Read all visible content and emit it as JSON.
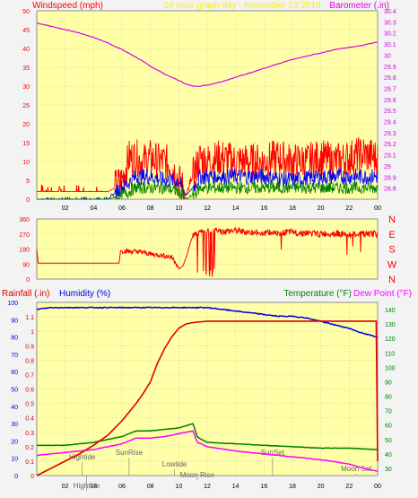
{
  "header": {
    "left_label": "Windspeed (mph)",
    "center_label": "24 hour graph day - November 13 2018",
    "right_label": "Barometer (.in)"
  },
  "legend_lower": {
    "rainfall": "Rainfall (.in)",
    "humidity": "Humidity (%)",
    "temperature": "Temperature (°F)",
    "dewpoint": "Dew Point (°F)"
  },
  "colors": {
    "panel_bg": "#ffffa8",
    "frame_bg": "#f3f3f3",
    "wind_speed": "#ff0000",
    "wind_avg": "#0000ff",
    "wind_low": "#008000",
    "barometer": "#e000e0",
    "wind_dir": "#ff0000",
    "rainfall": "#e00000",
    "humidity": "#0000e0",
    "temperature": "#008000",
    "dewpoint": "#ff00ff",
    "header_text": "#ffee00",
    "grid": "#b0b0b0"
  },
  "chart_data": [
    {
      "type": "line",
      "name": "wind-and-barometer",
      "x_ticks": [
        "02",
        "04",
        "06",
        "08",
        "10",
        "12",
        "14",
        "16",
        "18",
        "20",
        "22",
        "00"
      ],
      "x_range": [
        0,
        24
      ],
      "ylabel_left": "Windspeed (mph)",
      "ylabel_right": "Barometer (.in)",
      "ylim_left": [
        0,
        50
      ],
      "ylim_right": [
        28.7,
        30.4
      ],
      "y_ticks_left": [
        "0",
        "5",
        "10",
        "15",
        "20",
        "25",
        "30",
        "35",
        "40",
        "45",
        "50"
      ],
      "y_ticks_right": [
        "28.8",
        "28.9",
        "29",
        "29.1",
        "29.2",
        "29.3",
        "29.4",
        "29.5",
        "29.6",
        "29.7",
        "29.8",
        "29.9",
        "30",
        "30.1",
        "30.2",
        "30.3",
        "30.4"
      ],
      "grid": true,
      "series": [
        {
          "name": "Barometer",
          "axis": "right",
          "x": [
            0,
            1,
            2,
            3,
            4,
            5,
            6,
            7,
            8,
            9,
            10,
            10.5,
            11,
            11.5,
            12,
            13,
            14,
            15,
            16,
            17,
            18,
            19,
            20,
            21,
            22,
            23,
            24
          ],
          "y": [
            30.29,
            30.26,
            30.23,
            30.2,
            30.16,
            30.11,
            30.05,
            29.98,
            29.9,
            29.83,
            29.77,
            29.74,
            29.72,
            29.72,
            29.73,
            29.76,
            29.8,
            29.84,
            29.88,
            29.92,
            29.96,
            29.99,
            30.02,
            30.05,
            30.07,
            30.09,
            30.12
          ]
        },
        {
          "name": "Wind gust",
          "axis": "left",
          "x": [
            0,
            1,
            2,
            3,
            4,
            5,
            5.5,
            6,
            6.5,
            7,
            7.5,
            8,
            8.5,
            9,
            9.5,
            10,
            10.5,
            11,
            11.5,
            12,
            13,
            14,
            15,
            16,
            17,
            18,
            19,
            20,
            21,
            22,
            23,
            24
          ],
          "y": [
            2,
            2,
            2,
            2,
            2,
            2,
            3,
            5,
            11,
            11,
            10,
            11,
            10,
            10,
            9,
            5,
            1,
            6,
            11,
            10,
            11,
            10,
            10,
            10,
            11,
            10,
            10,
            11,
            10,
            11,
            12,
            11
          ]
        },
        {
          "name": "Wind average",
          "axis": "left",
          "x": [
            0,
            5,
            6,
            7,
            8,
            9,
            10,
            10.5,
            11,
            11.5,
            12,
            14,
            16,
            18,
            20,
            22,
            24
          ],
          "y": [
            0,
            0,
            3,
            6,
            6,
            5,
            5,
            1,
            3,
            6,
            6,
            6,
            6,
            5,
            6,
            6,
            6
          ]
        },
        {
          "name": "Wind low",
          "axis": "left",
          "x": [
            0,
            5,
            6,
            7,
            8,
            9,
            10,
            10.5,
            11,
            11.5,
            12,
            14,
            16,
            18,
            20,
            22,
            24
          ],
          "y": [
            0,
            0,
            1,
            3,
            3,
            3,
            2,
            0,
            1,
            3,
            3,
            3,
            3,
            3,
            3,
            3,
            3
          ]
        }
      ]
    },
    {
      "type": "line",
      "name": "wind-direction",
      "x_range": [
        0,
        24
      ],
      "ylim": [
        0,
        360
      ],
      "y_ticks_left": [
        "0",
        "90",
        "180",
        "270",
        "360"
      ],
      "y_ticks_right": [
        "N",
        "W",
        "S",
        "E",
        "N"
      ],
      "grid": true,
      "series": [
        {
          "name": "Wind direction",
          "x": [
            0,
            0.1,
            5.8,
            5.9,
            6.5,
            7,
            7.5,
            8,
            8.5,
            9,
            9.5,
            9.8,
            10,
            10.3,
            10.6,
            10.8,
            11,
            11.2,
            11.6,
            12,
            13,
            14,
            15,
            16,
            17,
            18,
            19,
            20,
            21,
            22,
            23,
            24
          ],
          "y": [
            180,
            95,
            95,
            170,
            165,
            165,
            160,
            150,
            145,
            140,
            130,
            100,
            60,
            80,
            150,
            215,
            260,
            270,
            280,
            290,
            285,
            290,
            280,
            275,
            280,
            280,
            275,
            270,
            275,
            265,
            270,
            270
          ]
        }
      ]
    },
    {
      "type": "line",
      "name": "rain-humidity-temperature",
      "x_ticks": [
        "02",
        "04",
        "06",
        "08",
        "10",
        "12",
        "14",
        "16",
        "18",
        "20",
        "22",
        "00"
      ],
      "x_range": [
        0,
        24
      ],
      "ylim_humidity": [
        0,
        100
      ],
      "ylim_rain": [
        0,
        1.2
      ],
      "ylim_temp": [
        25,
        145
      ],
      "y_ticks_humidity": [
        "0",
        "10",
        "20",
        "30",
        "40",
        "50",
        "60",
        "70",
        "80",
        "90",
        "100"
      ],
      "y_ticks_rain": [
        "0",
        "0.1",
        "0.2",
        "0.3",
        "0.4",
        "0.5",
        "0.6",
        "0.7",
        "0.8",
        "0.9",
        "1",
        "1.1"
      ],
      "y_ticks_temp": [
        "30",
        "40",
        "50",
        "60",
        "70",
        "80",
        "90",
        "100",
        "110",
        "120",
        "130",
        "140"
      ],
      "grid": true,
      "annotations": [
        {
          "label": "Hightide",
          "x": 3.2
        },
        {
          "label": "SunRise",
          "x": 6.5
        },
        {
          "label": "Lowtide",
          "x": 9.7
        },
        {
          "label": "Moon Rise",
          "x": 11.3
        },
        {
          "label": "SunSet",
          "x": 16.6
        },
        {
          "label": "Moon Set",
          "x": 22.5
        },
        {
          "label": "Hightide",
          "x": 3.5
        }
      ],
      "series": [
        {
          "name": "Rainfall",
          "axis": "rain",
          "x": [
            0,
            1,
            2,
            3,
            4,
            5,
            6,
            7,
            7.5,
            8,
            8.5,
            9,
            9.5,
            10,
            10.5,
            11,
            12,
            13,
            14,
            16,
            18,
            20,
            22,
            23.9,
            24
          ],
          "y": [
            0,
            0.05,
            0.1,
            0.15,
            0.21,
            0.28,
            0.38,
            0.5,
            0.57,
            0.65,
            0.78,
            0.88,
            0.96,
            1.02,
            1.05,
            1.06,
            1.07,
            1.07,
            1.07,
            1.07,
            1.07,
            1.07,
            1.07,
            1.07,
            0.1
          ]
        },
        {
          "name": "Humidity",
          "axis": "humidity",
          "x": [
            0,
            1,
            2,
            4,
            6,
            8,
            10,
            12,
            13,
            14,
            15,
            16,
            17,
            18,
            19,
            20,
            21,
            22,
            23,
            24
          ],
          "y": [
            96,
            97,
            97,
            97,
            97,
            97,
            97,
            97,
            96,
            95,
            94,
            93,
            92,
            92,
            91,
            89,
            87,
            85,
            82,
            80
          ]
        },
        {
          "name": "Temperature",
          "axis": "temp",
          "x": [
            0,
            2,
            4,
            6,
            7,
            8,
            9,
            10,
            11,
            11.3,
            11.6,
            12,
            14,
            16,
            18,
            20,
            22,
            24
          ],
          "y": [
            46,
            46,
            48,
            52,
            56,
            56,
            57,
            58,
            61,
            52,
            50,
            48,
            47,
            46,
            45,
            44,
            44,
            43
          ]
        },
        {
          "name": "Dew Point",
          "axis": "temp",
          "x": [
            0,
            2,
            4,
            6,
            7,
            8,
            9,
            10,
            11,
            11.3,
            11.6,
            12,
            14,
            16,
            18,
            20,
            22,
            23,
            24
          ],
          "y": [
            39,
            41,
            43,
            47,
            51,
            51,
            52,
            54,
            56,
            48,
            47,
            45,
            42,
            40,
            38,
            36,
            33,
            30,
            28
          ]
        }
      ]
    }
  ]
}
